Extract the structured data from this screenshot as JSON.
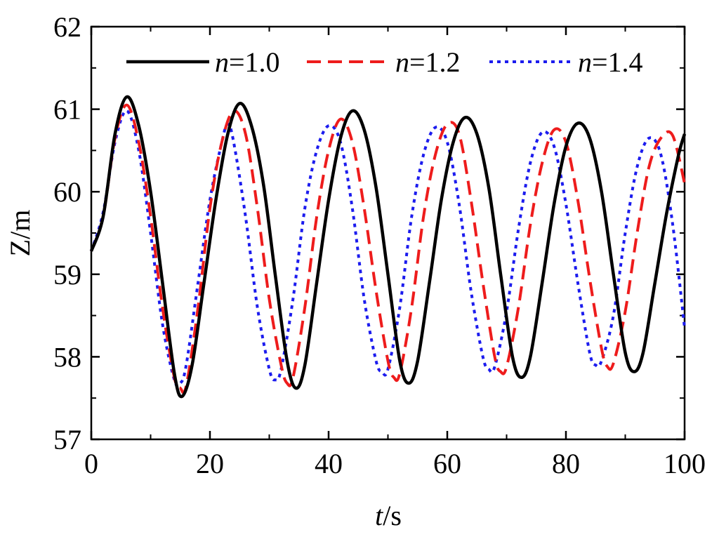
{
  "chart_data": {
    "type": "line",
    "title": "",
    "xlabel": {
      "italic": "t",
      "rest": "/s"
    },
    "ylabel": "Z/m",
    "xlim": [
      0,
      100
    ],
    "ylim": [
      57,
      62
    ],
    "xticks": [
      "0",
      "20",
      "40",
      "60",
      "80",
      "100"
    ],
    "yticks": [
      "57",
      "58",
      "59",
      "60",
      "61",
      "62"
    ],
    "grid": false,
    "legend_placement": "top",
    "series": [
      {
        "name": "n=1.0",
        "name_italic": "n",
        "name_rest": "=1.0",
        "color": "#000000",
        "dash": "solid",
        "points": [
          [
            0,
            59.28
          ],
          [
            2,
            59.7
          ],
          [
            4,
            60.7
          ],
          [
            6,
            61.15
          ],
          [
            8,
            60.8
          ],
          [
            10,
            60.0
          ],
          [
            12,
            58.9
          ],
          [
            14,
            57.8
          ],
          [
            15.3,
            57.52
          ],
          [
            17,
            57.9
          ],
          [
            19,
            58.9
          ],
          [
            21,
            59.9
          ],
          [
            23,
            60.7
          ],
          [
            25,
            61.07
          ],
          [
            27,
            60.8
          ],
          [
            29,
            60.1
          ],
          [
            31,
            59.0
          ],
          [
            33,
            57.95
          ],
          [
            34.5,
            57.62
          ],
          [
            36,
            57.9
          ],
          [
            38,
            58.9
          ],
          [
            40,
            59.9
          ],
          [
            42,
            60.65
          ],
          [
            44,
            60.98
          ],
          [
            46,
            60.75
          ],
          [
            48,
            60.05
          ],
          [
            50,
            59.0
          ],
          [
            52,
            57.95
          ],
          [
            53.5,
            57.68
          ],
          [
            55,
            57.95
          ],
          [
            57,
            58.9
          ],
          [
            59,
            59.9
          ],
          [
            61,
            60.6
          ],
          [
            63,
            60.9
          ],
          [
            65,
            60.7
          ],
          [
            67,
            60.05
          ],
          [
            69,
            59.0
          ],
          [
            71,
            58.0
          ],
          [
            72.5,
            57.75
          ],
          [
            74,
            58.0
          ],
          [
            76,
            58.9
          ],
          [
            78,
            59.85
          ],
          [
            80,
            60.55
          ],
          [
            82,
            60.83
          ],
          [
            84,
            60.65
          ],
          [
            86,
            60.0
          ],
          [
            88,
            59.0
          ],
          [
            90,
            58.05
          ],
          [
            91.5,
            57.82
          ],
          [
            93,
            58.05
          ],
          [
            95,
            58.9
          ],
          [
            97,
            59.75
          ],
          [
            99,
            60.45
          ],
          [
            100,
            60.7
          ]
        ]
      },
      {
        "name": "n=1.2",
        "name_italic": "n",
        "name_rest": "=1.2",
        "color": "#ee1c1c",
        "dash": "dashed",
        "points": [
          [
            0,
            59.28
          ],
          [
            2,
            59.7
          ],
          [
            4,
            60.65
          ],
          [
            6,
            61.05
          ],
          [
            8,
            60.6
          ],
          [
            10,
            59.7
          ],
          [
            12,
            58.6
          ],
          [
            14,
            57.75
          ],
          [
            15,
            57.62
          ],
          [
            16,
            57.65
          ],
          [
            18,
            58.6
          ],
          [
            20,
            59.8
          ],
          [
            22,
            60.6
          ],
          [
            24,
            60.98
          ],
          [
            26,
            60.7
          ],
          [
            28,
            59.8
          ],
          [
            30,
            58.7
          ],
          [
            32,
            57.9
          ],
          [
            33,
            57.68
          ],
          [
            34,
            57.75
          ],
          [
            36,
            58.6
          ],
          [
            38,
            59.7
          ],
          [
            40,
            60.5
          ],
          [
            42,
            60.88
          ],
          [
            44,
            60.6
          ],
          [
            46,
            59.8
          ],
          [
            48,
            58.8
          ],
          [
            50,
            57.95
          ],
          [
            51,
            57.75
          ],
          [
            52,
            57.8
          ],
          [
            54,
            58.6
          ],
          [
            56,
            59.7
          ],
          [
            58,
            60.45
          ],
          [
            60,
            60.82
          ],
          [
            62,
            60.7
          ],
          [
            64,
            59.9
          ],
          [
            66,
            58.9
          ],
          [
            68,
            58.0
          ],
          [
            69,
            57.82
          ],
          [
            70,
            57.88
          ],
          [
            72,
            58.6
          ],
          [
            74,
            59.6
          ],
          [
            76,
            60.35
          ],
          [
            78,
            60.75
          ],
          [
            80,
            60.6
          ],
          [
            82,
            59.9
          ],
          [
            84,
            58.95
          ],
          [
            86,
            58.1
          ],
          [
            87,
            57.88
          ],
          [
            88,
            57.92
          ],
          [
            90,
            58.55
          ],
          [
            92,
            59.5
          ],
          [
            94,
            60.3
          ],
          [
            96,
            60.65
          ],
          [
            98,
            60.68
          ],
          [
            100,
            60.1
          ]
        ]
      },
      {
        "name": "n=1.4",
        "name_italic": "n",
        "name_rest": "=1.4",
        "color": "#1c1cee",
        "dash": "dotted",
        "points": [
          [
            0,
            59.28
          ],
          [
            2,
            59.75
          ],
          [
            4,
            60.6
          ],
          [
            6,
            60.98
          ],
          [
            8,
            60.5
          ],
          [
            10,
            59.5
          ],
          [
            12,
            58.4
          ],
          [
            14,
            57.72
          ],
          [
            15,
            57.68
          ],
          [
            16,
            57.9
          ],
          [
            18,
            58.9
          ],
          [
            20,
            59.9
          ],
          [
            22,
            60.6
          ],
          [
            23,
            60.82
          ],
          [
            24,
            60.6
          ],
          [
            26,
            59.7
          ],
          [
            28,
            58.6
          ],
          [
            30,
            57.85
          ],
          [
            31,
            57.72
          ],
          [
            32,
            57.85
          ],
          [
            34,
            58.7
          ],
          [
            36,
            59.8
          ],
          [
            38,
            60.5
          ],
          [
            40,
            60.8
          ],
          [
            42,
            60.6
          ],
          [
            44,
            59.8
          ],
          [
            46,
            58.7
          ],
          [
            48,
            57.95
          ],
          [
            49,
            57.82
          ],
          [
            50,
            57.85
          ],
          [
            52,
            58.6
          ],
          [
            54,
            59.7
          ],
          [
            56,
            60.45
          ],
          [
            58,
            60.78
          ],
          [
            60,
            60.6
          ],
          [
            62,
            59.85
          ],
          [
            64,
            58.8
          ],
          [
            66,
            58.0
          ],
          [
            67,
            57.85
          ],
          [
            68,
            57.88
          ],
          [
            70,
            58.55
          ],
          [
            72,
            59.55
          ],
          [
            74,
            60.35
          ],
          [
            76,
            60.72
          ],
          [
            78,
            60.55
          ],
          [
            80,
            59.85
          ],
          [
            82,
            58.9
          ],
          [
            84,
            58.05
          ],
          [
            85,
            57.9
          ],
          [
            86,
            57.95
          ],
          [
            88,
            58.5
          ],
          [
            90,
            59.5
          ],
          [
            92,
            60.3
          ],
          [
            94,
            60.65
          ],
          [
            96,
            60.45
          ],
          [
            98,
            59.6
          ],
          [
            100,
            58.35
          ]
        ]
      }
    ]
  }
}
